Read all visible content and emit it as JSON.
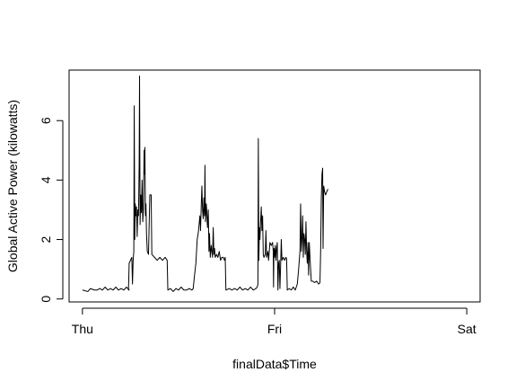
{
  "chart_data": {
    "type": "line",
    "title": "",
    "xlabel": "finalData$Time",
    "ylabel": "Global Active Power (kilowatts)",
    "x_ticks": [
      {
        "label": "Thu",
        "value": 0
      },
      {
        "label": "Fri",
        "value": 1440
      },
      {
        "label": "Sat",
        "value": 2880
      }
    ],
    "y_ticks": [
      0,
      2,
      4,
      6
    ],
    "xlim": [
      -100,
      2980
    ],
    "ylim": [
      -0.1,
      7.7
    ],
    "grid": false,
    "series": [
      {
        "values": [
          [
            0,
            0.3
          ],
          [
            40,
            0.25
          ],
          [
            60,
            0.35
          ],
          [
            90,
            0.3
          ],
          [
            110,
            0.3
          ],
          [
            130,
            0.35
          ],
          [
            150,
            0.3
          ],
          [
            170,
            0.4
          ],
          [
            190,
            0.3
          ],
          [
            210,
            0.35
          ],
          [
            230,
            0.3
          ],
          [
            250,
            0.4
          ],
          [
            270,
            0.3
          ],
          [
            290,
            0.35
          ],
          [
            310,
            0.3
          ],
          [
            330,
            0.4
          ],
          [
            350,
            0.3
          ],
          [
            345,
            0.3
          ],
          [
            350,
            1.2
          ],
          [
            360,
            1.3
          ],
          [
            370,
            1.4
          ],
          [
            375,
            0.5
          ],
          [
            380,
            1.3
          ],
          [
            385,
            1.6
          ],
          [
            388,
            6.5
          ],
          [
            392,
            2.0
          ],
          [
            396,
            3.2
          ],
          [
            400,
            2.8
          ],
          [
            405,
            3.1
          ],
          [
            410,
            2.1
          ],
          [
            415,
            3.0
          ],
          [
            420,
            2.8
          ],
          [
            425,
            4.5
          ],
          [
            428,
            7.5
          ],
          [
            432,
            2.5
          ],
          [
            437,
            3.5
          ],
          [
            442,
            2.9
          ],
          [
            447,
            4.0
          ],
          [
            452,
            2.6
          ],
          [
            457,
            3.0
          ],
          [
            462,
            5.0
          ],
          [
            465,
            4.2
          ],
          [
            468,
            5.1
          ],
          [
            472,
            2.8
          ],
          [
            476,
            3.2
          ],
          [
            480,
            2.2
          ],
          [
            486,
            1.6
          ],
          [
            495,
            1.5
          ],
          [
            505,
            3.5
          ],
          [
            515,
            3.5
          ],
          [
            520,
            1.5
          ],
          [
            540,
            1.4
          ],
          [
            560,
            1.3
          ],
          [
            580,
            1.4
          ],
          [
            600,
            1.3
          ],
          [
            620,
            1.4
          ],
          [
            635,
            1.3
          ],
          [
            640,
            0.3
          ],
          [
            660,
            0.35
          ],
          [
            680,
            0.25
          ],
          [
            700,
            0.35
          ],
          [
            720,
            0.3
          ],
          [
            740,
            0.4
          ],
          [
            760,
            0.3
          ],
          [
            780,
            0.3
          ],
          [
            800,
            0.35
          ],
          [
            820,
            0.3
          ],
          [
            830,
            0.35
          ],
          [
            840,
            0.8
          ],
          [
            850,
            1.2
          ],
          [
            860,
            2.0
          ],
          [
            870,
            2.3
          ],
          [
            880,
            2.8
          ],
          [
            885,
            2.3
          ],
          [
            890,
            3.1
          ],
          [
            895,
            3.8
          ],
          [
            900,
            3.0
          ],
          [
            905,
            2.7
          ],
          [
            910,
            3.4
          ],
          [
            915,
            2.8
          ],
          [
            918,
            4.5
          ],
          [
            922,
            2.6
          ],
          [
            928,
            3.2
          ],
          [
            932,
            2.9
          ],
          [
            937,
            2.4
          ],
          [
            943,
            3.0
          ],
          [
            948,
            1.6
          ],
          [
            952,
            2.2
          ],
          [
            958,
            1.4
          ],
          [
            965,
            1.8
          ],
          [
            970,
            1.6
          ],
          [
            975,
            1.4
          ],
          [
            980,
            2.4
          ],
          [
            985,
            1.5
          ],
          [
            990,
            1.7
          ],
          [
            995,
            1.4
          ],
          [
            1005,
            1.5
          ],
          [
            1015,
            1.4
          ],
          [
            1025,
            1.6
          ],
          [
            1035,
            1.3
          ],
          [
            1045,
            1.4
          ],
          [
            1055,
            1.4
          ],
          [
            1065,
            1.3
          ],
          [
            1070,
            1.4
          ],
          [
            1075,
            0.3
          ],
          [
            1100,
            0.35
          ],
          [
            1120,
            0.3
          ],
          [
            1140,
            0.35
          ],
          [
            1160,
            0.3
          ],
          [
            1180,
            0.4
          ],
          [
            1200,
            0.3
          ],
          [
            1220,
            0.35
          ],
          [
            1240,
            0.3
          ],
          [
            1260,
            0.4
          ],
          [
            1280,
            0.3
          ],
          [
            1300,
            0.35
          ],
          [
            1310,
            0.4
          ],
          [
            1315,
            0.5
          ],
          [
            1318,
            5.4
          ],
          [
            1322,
            1.3
          ],
          [
            1326,
            2.4
          ],
          [
            1330,
            2.0
          ],
          [
            1335,
            2.6
          ],
          [
            1340,
            3.1
          ],
          [
            1345,
            2.3
          ],
          [
            1350,
            2.8
          ],
          [
            1355,
            1.5
          ],
          [
            1360,
            1.4
          ],
          [
            1370,
            1.5
          ],
          [
            1375,
            2.3
          ],
          [
            1380,
            1.4
          ],
          [
            1390,
            1.6
          ],
          [
            1395,
            1.3
          ],
          [
            1405,
            1.9
          ],
          [
            1415,
            1.8
          ],
          [
            1425,
            1.9
          ],
          [
            1430,
            1.6
          ],
          [
            1432,
            0.4
          ],
          [
            1435,
            1.7
          ],
          [
            1440,
            1.4
          ],
          [
            1445,
            1.8
          ],
          [
            1450,
            1.3
          ],
          [
            1455,
            1.7
          ],
          [
            1460,
            1.9
          ],
          [
            1465,
            0.3
          ],
          [
            1470,
            1.2
          ],
          [
            1475,
            1.3
          ],
          [
            1480,
            0.35
          ],
          [
            1485,
            1.1
          ],
          [
            1490,
            2.0
          ],
          [
            1495,
            1.3
          ],
          [
            1505,
            1.4
          ],
          [
            1515,
            1.3
          ],
          [
            1525,
            1.4
          ],
          [
            1530,
            1.35
          ],
          [
            1535,
            0.3
          ],
          [
            1550,
            0.35
          ],
          [
            1565,
            0.3
          ],
          [
            1580,
            0.4
          ],
          [
            1595,
            0.3
          ],
          [
            1610,
            0.5
          ],
          [
            1620,
            1.0
          ],
          [
            1630,
            1.6
          ],
          [
            1635,
            3.2
          ],
          [
            1640,
            1.6
          ],
          [
            1645,
            2.0
          ],
          [
            1650,
            2.8
          ],
          [
            1655,
            1.4
          ],
          [
            1660,
            2.2
          ],
          [
            1665,
            2.0
          ],
          [
            1670,
            1.5
          ],
          [
            1675,
            2.6
          ],
          [
            1680,
            1.6
          ],
          [
            1685,
            1.2
          ],
          [
            1690,
            1.9
          ],
          [
            1695,
            0.8
          ],
          [
            1700,
            1.9
          ],
          [
            1705,
            1.4
          ],
          [
            1710,
            1.0
          ],
          [
            1715,
            0.6
          ],
          [
            1725,
            0.6
          ],
          [
            1740,
            0.55
          ],
          [
            1755,
            0.6
          ],
          [
            1770,
            0.5
          ],
          [
            1780,
            0.55
          ],
          [
            1785,
            1.6
          ],
          [
            1790,
            3.4
          ],
          [
            1795,
            4.2
          ],
          [
            1800,
            4.4
          ],
          [
            1803,
            1.7
          ],
          [
            1808,
            3.8
          ],
          [
            1815,
            3.6
          ],
          [
            1822,
            3.5
          ],
          [
            1830,
            3.6
          ],
          [
            1840,
            3.7
          ]
        ]
      }
    ]
  }
}
